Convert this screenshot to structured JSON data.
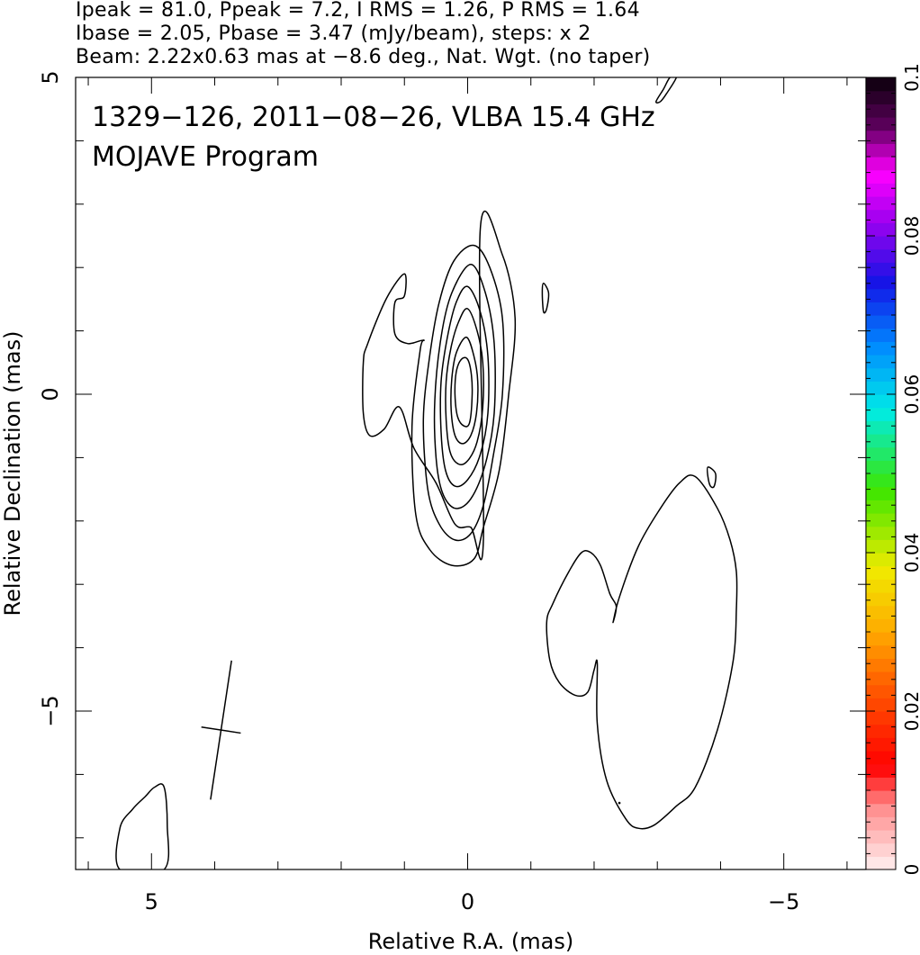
{
  "header": {
    "line1": "Ipeak = 81.0, Ppeak = 7.2, I RMS = 1.26, P RMS = 1.64",
    "line2": "Ibase = 2.05, Pbase = 3.47 (mJy/beam), steps: x 2",
    "line3": "Beam: 2.22x0.63 mas at −8.6 deg., Nat. Wgt. (no taper)"
  },
  "chart_data": {
    "type": "contour",
    "title": "1329−126, 2011−08−26, VLBA 15.4 GHz",
    "subtitle": "MOJAVE Program",
    "xlabel": "Relative R.A. (mas)",
    "ylabel": "Relative Declination (mas)",
    "xlim": [
      6.2,
      -6.3
    ],
    "ylim": [
      -7.5,
      5
    ],
    "x_ticks": [
      {
        "value": 5,
        "label": "5"
      },
      {
        "value": 0,
        "label": "0"
      },
      {
        "value": -5,
        "label": "−5"
      }
    ],
    "y_ticks": [
      {
        "value": 5,
        "label": "5"
      },
      {
        "value": 0,
        "label": "0"
      },
      {
        "value": -5,
        "label": "−5"
      }
    ],
    "x_minor_step": 1,
    "y_minor_step": 1,
    "grid": false,
    "contour_base_mJy_per_beam": 2.05,
    "contour_step_factor": 2,
    "core_contours": [
      {
        "level": 1,
        "points": [
          [
            -0.2,
            2.6
          ],
          [
            -0.55,
            2.2
          ],
          [
            -0.75,
            1.2
          ],
          [
            -0.65,
            0
          ],
          [
            -0.5,
            -1.2
          ],
          [
            -0.25,
            -2.1
          ],
          [
            -0.1,
            -2.6
          ],
          [
            0.25,
            -2.7
          ],
          [
            0.6,
            -2.45
          ],
          [
            0.82,
            -1.9
          ],
          [
            0.88,
            -0.5
          ],
          [
            0.75,
            0.7
          ],
          [
            0.7,
            0.85
          ],
          [
            0.95,
            0.8
          ],
          [
            1.15,
            0.95
          ],
          [
            1.15,
            1.45
          ],
          [
            1.0,
            1.55
          ],
          [
            1.0,
            1.9
          ],
          [
            1.28,
            1.52
          ],
          [
            1.58,
            0.8
          ],
          [
            1.65,
            0.5
          ],
          [
            1.65,
            -0.3
          ],
          [
            1.55,
            -0.65
          ],
          [
            1.32,
            -0.55
          ],
          [
            1.08,
            -0.2
          ],
          [
            0.85,
            -0.85
          ],
          [
            0.5,
            -1.4
          ],
          [
            0.2,
            -2.05
          ],
          [
            -0.05,
            -2.1
          ],
          [
            -0.25,
            -2.3
          ]
        ]
      },
      {
        "level": 2,
        "points": [
          [
            -0.1,
            2.35
          ],
          [
            -0.35,
            2.0
          ],
          [
            -0.55,
            1.2
          ],
          [
            -0.55,
            0
          ],
          [
            -0.4,
            -1.0
          ],
          [
            -0.25,
            -1.75
          ],
          [
            -0.05,
            -2.2
          ],
          [
            0.2,
            -2.3
          ],
          [
            0.45,
            -2.05
          ],
          [
            0.63,
            -1.5
          ],
          [
            0.7,
            -0.4
          ],
          [
            0.6,
            0.6
          ],
          [
            0.45,
            1.45
          ],
          [
            0.22,
            2.1
          ]
        ]
      },
      {
        "level": 4,
        "points": [
          [
            -0.05,
            2.05
          ],
          [
            -0.28,
            1.6
          ],
          [
            -0.42,
            0.8
          ],
          [
            -0.42,
            -0.3
          ],
          [
            -0.28,
            -1.1
          ],
          [
            -0.05,
            -1.65
          ],
          [
            0.2,
            -1.8
          ],
          [
            0.4,
            -1.55
          ],
          [
            0.5,
            -1.0
          ],
          [
            0.52,
            -0.1
          ],
          [
            0.42,
            0.9
          ],
          [
            0.25,
            1.6
          ]
        ]
      },
      {
        "level": 8,
        "points": [
          [
            0,
            1.7
          ],
          [
            -0.2,
            1.3
          ],
          [
            -0.32,
            0.6
          ],
          [
            -0.32,
            -0.3
          ],
          [
            -0.2,
            -0.95
          ],
          [
            0.0,
            -1.35
          ],
          [
            0.2,
            -1.45
          ],
          [
            0.35,
            -1.2
          ],
          [
            0.42,
            -0.6
          ],
          [
            0.42,
            0.2
          ],
          [
            0.32,
            0.9
          ],
          [
            0.18,
            1.45
          ]
        ]
      },
      {
        "level": 16,
        "points": [
          [
            0,
            1.35
          ],
          [
            -0.15,
            1.0
          ],
          [
            -0.24,
            0.5
          ],
          [
            -0.24,
            -0.2
          ],
          [
            -0.15,
            -0.75
          ],
          [
            0.0,
            -1.05
          ],
          [
            0.15,
            -1.1
          ],
          [
            0.28,
            -0.9
          ],
          [
            0.34,
            -0.4
          ],
          [
            0.34,
            0.2
          ],
          [
            0.26,
            0.75
          ],
          [
            0.14,
            1.15
          ]
        ]
      },
      {
        "level": 32,
        "points": [
          [
            0.02,
            0.9
          ],
          [
            -0.1,
            0.6
          ],
          [
            -0.16,
            0.2
          ],
          [
            -0.14,
            -0.3
          ],
          [
            -0.05,
            -0.65
          ],
          [
            0.08,
            -0.78
          ],
          [
            0.2,
            -0.65
          ],
          [
            0.26,
            -0.25
          ],
          [
            0.25,
            0.25
          ],
          [
            0.18,
            0.65
          ]
        ]
      },
      {
        "level": 64,
        "points": [
          [
            0,
            0.55
          ],
          [
            -0.06,
            0.3
          ],
          [
            -0.07,
            -0.05
          ],
          [
            -0.03,
            -0.45
          ],
          [
            0.06,
            -0.5
          ],
          [
            0.16,
            -0.35
          ],
          [
            0.2,
            0.0
          ],
          [
            0.18,
            0.35
          ],
          [
            0.1,
            0.55
          ]
        ]
      }
    ],
    "other_contours": [
      {
        "name": "south-west jet blob",
        "level": 1,
        "points": [
          [
            -3.6,
            -1.3
          ],
          [
            -3.35,
            -1.4
          ],
          [
            -3.05,
            -1.8
          ],
          [
            -2.7,
            -2.4
          ],
          [
            -2.4,
            -3.2
          ],
          [
            -2.3,
            -3.6
          ],
          [
            -2.35,
            -3.35
          ],
          [
            -2.25,
            -3.15
          ],
          [
            -2.1,
            -2.7
          ],
          [
            -1.95,
            -2.5
          ],
          [
            -1.8,
            -2.5
          ],
          [
            -1.6,
            -2.8
          ],
          [
            -1.35,
            -3.3
          ],
          [
            -1.25,
            -3.6
          ],
          [
            -1.3,
            -4.2
          ],
          [
            -1.45,
            -4.55
          ],
          [
            -1.7,
            -4.75
          ],
          [
            -1.9,
            -4.7
          ],
          [
            -2.0,
            -4.35
          ],
          [
            -2.05,
            -4.25
          ],
          [
            -2.05,
            -5.2
          ],
          [
            -2.2,
            -6.1
          ],
          [
            -2.5,
            -6.7
          ],
          [
            -2.7,
            -6.85
          ],
          [
            -2.95,
            -6.8
          ],
          [
            -3.3,
            -6.5
          ],
          [
            -3.6,
            -6.2
          ],
          [
            -3.95,
            -5.3
          ],
          [
            -4.2,
            -4.2
          ],
          [
            -4.25,
            -3.4
          ],
          [
            -4.25,
            -2.8
          ],
          [
            -4.15,
            -2.3
          ],
          [
            -3.95,
            -1.8
          ]
        ]
      },
      {
        "name": "small blob north of core",
        "level": 1,
        "points": [
          [
            -1.2,
            1.75
          ],
          [
            -1.28,
            1.6
          ],
          [
            -1.25,
            1.35
          ],
          [
            -1.2,
            1.3
          ],
          [
            -1.18,
            1.6
          ]
        ]
      },
      {
        "name": "small blob east of south-west blob",
        "level": 1,
        "points": [
          [
            -3.8,
            -1.15
          ],
          [
            -3.92,
            -1.25
          ],
          [
            -3.9,
            -1.45
          ],
          [
            -3.84,
            -1.45
          ],
          [
            -3.8,
            -1.3
          ]
        ]
      },
      {
        "name": "top edge fragment",
        "level": 1,
        "points": [
          [
            -3.3,
            5.0
          ],
          [
            -3.15,
            4.75
          ],
          [
            -3.05,
            4.62
          ],
          [
            -2.98,
            4.62
          ],
          [
            -3.1,
            4.82
          ],
          [
            -3.2,
            5.0
          ]
        ]
      },
      {
        "name": "bottom-left fragment",
        "level": 1,
        "points": [
          [
            5.5,
            -7.5
          ],
          [
            5.5,
            -6.85
          ],
          [
            5.3,
            -6.55
          ],
          [
            5.1,
            -6.35
          ],
          [
            4.95,
            -6.2
          ],
          [
            4.8,
            -6.2
          ],
          [
            4.75,
            -6.8
          ],
          [
            4.8,
            -7.5
          ]
        ]
      }
    ],
    "point_marks": [
      [
        -2.4,
        -6.45
      ]
    ],
    "beam_cross": {
      "major_axis_mas": 2.22,
      "minor_axis_mas": 0.63,
      "position_angle_deg": -8.6,
      "center": [
        3.9,
        -5.3
      ]
    },
    "colorbar": {
      "min": 0,
      "max": 0.1,
      "labels": [
        "0",
        "0.02",
        "0.04",
        "0.06",
        "0.08",
        "0.1"
      ]
    }
  }
}
